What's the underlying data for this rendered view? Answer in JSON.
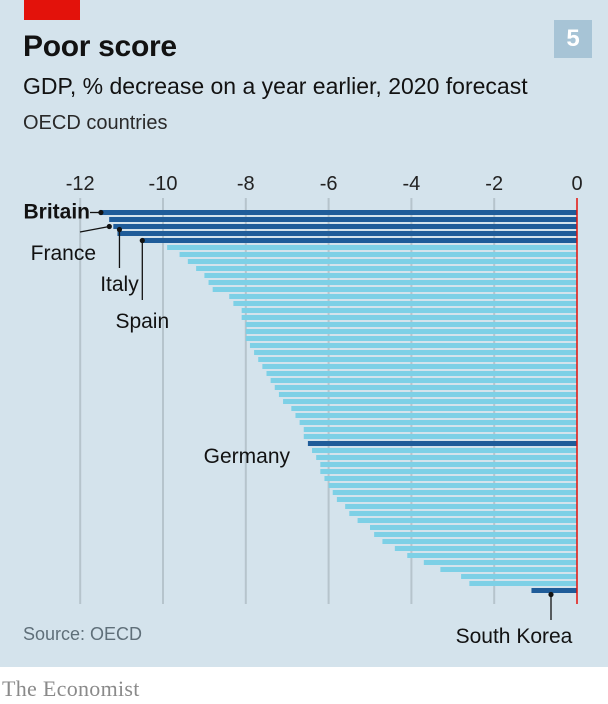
{
  "header": {
    "title": "Poor score",
    "badge": "5",
    "subtitle": "GDP, % decrease on a year earlier, 2020 forecast",
    "subsubtitle": "OECD countries"
  },
  "footer": {
    "source": "Source: OECD",
    "brand": "The Economist"
  },
  "colors": {
    "accent_red": "#e3120b",
    "bar_light": "#7dd0e6",
    "bar_highlight": "#1f5c99",
    "zero_line": "#e3120b",
    "grid": "#b6c4cc",
    "panel_bg": "#d4e3ec"
  },
  "chart_data": {
    "type": "bar",
    "orientation": "horizontal",
    "xlim": [
      -12.5,
      0
    ],
    "xticks": [
      -12,
      -10,
      -8,
      -6,
      -4,
      -2,
      0
    ],
    "grid": true,
    "values": [
      -11.5,
      -11.3,
      -11.2,
      -11.1,
      -10.5,
      -9.9,
      -9.6,
      -9.4,
      -9.2,
      -9.0,
      -8.9,
      -8.8,
      -8.4,
      -8.3,
      -8.1,
      -8.1,
      -8.0,
      -8.0,
      -8.0,
      -7.9,
      -7.8,
      -7.7,
      -7.6,
      -7.5,
      -7.4,
      -7.3,
      -7.2,
      -7.1,
      -6.9,
      -6.8,
      -6.7,
      -6.6,
      -6.6,
      -6.5,
      -6.4,
      -6.3,
      -6.2,
      -6.2,
      -6.1,
      -6.0,
      -5.9,
      -5.8,
      -5.6,
      -5.5,
      -5.3,
      -5.0,
      -4.9,
      -4.7,
      -4.4,
      -4.1,
      -3.7,
      -3.3,
      -2.8,
      -2.6,
      -1.1
    ],
    "highlighted": [
      {
        "index": 0,
        "label": "Britain",
        "bold": true
      },
      {
        "index": 1,
        "label": "",
        "bold": false
      },
      {
        "index": 2,
        "label": "France",
        "bold": false
      },
      {
        "index": 3,
        "label": "Italy",
        "bold": false
      },
      {
        "index": 4,
        "label": "Spain",
        "bold": false
      },
      {
        "index": 33,
        "label": "Germany",
        "bold": false
      },
      {
        "index": 54,
        "label": "South Korea",
        "bold": false
      }
    ]
  }
}
